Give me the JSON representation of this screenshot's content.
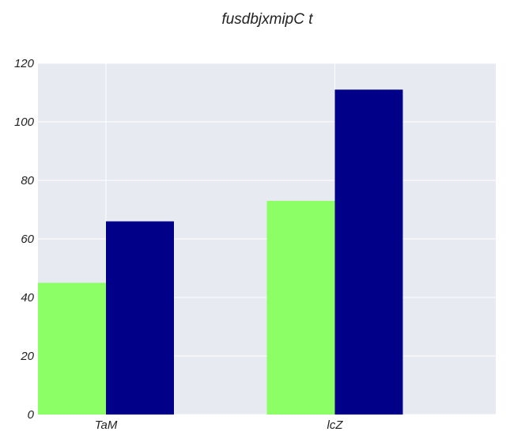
{
  "chart_data": {
    "type": "bar",
    "title": "fusdbjxmipC  t",
    "xlabel": "",
    "ylabel": "",
    "categories": [
      "TaM",
      "lcZ"
    ],
    "series": [
      {
        "values": [
          45,
          73
        ],
        "color": "#8cff66"
      },
      {
        "values": [
          66,
          111
        ],
        "color": "#000088"
      }
    ],
    "ylim": [
      0,
      120
    ],
    "yticks": [
      0,
      20,
      40,
      60,
      80,
      100,
      120
    ],
    "grid": true,
    "background_color": "#e8eaf1",
    "grid_color": "#ffffff"
  }
}
